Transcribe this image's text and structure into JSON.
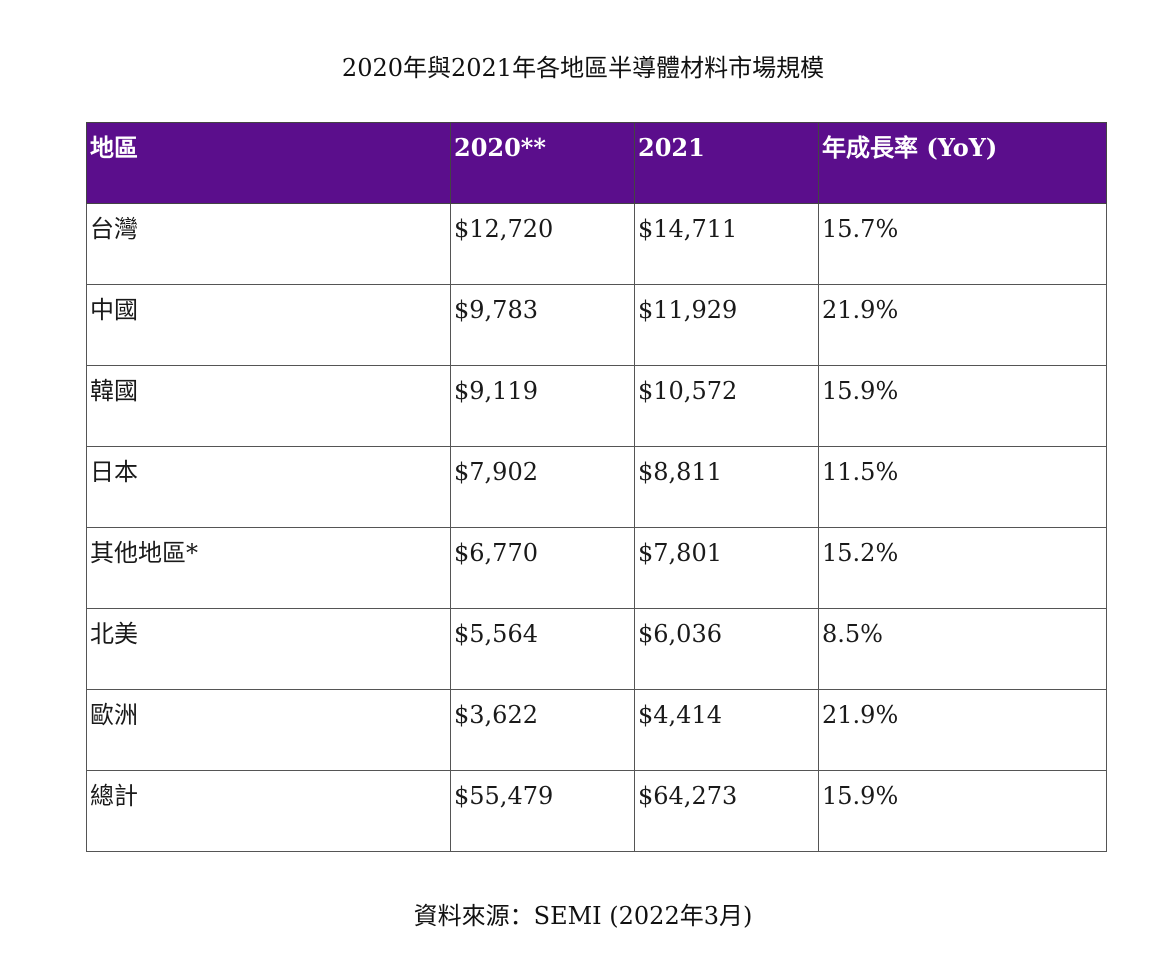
{
  "title": "2020年與2021年各地區半導體材料市場規模",
  "table": {
    "headers": [
      "地區",
      "2020**",
      "2021",
      "年成長率 (YoY)"
    ],
    "rows": [
      [
        "台灣",
        "$12,720",
        "$14,711",
        "15.7%"
      ],
      [
        "中國",
        "$9,783",
        "$11,929",
        "21.9%"
      ],
      [
        "韓國",
        "$9,119",
        "$10,572",
        "15.9%"
      ],
      [
        "日本",
        "$7,902",
        "$8,811",
        "11.5%"
      ],
      [
        "其他地區*",
        "$6,770",
        "$7,801",
        "15.2%"
      ],
      [
        "北美",
        "$5,564",
        "$6,036",
        "8.5%"
      ],
      [
        "歐洲",
        "$3,622",
        "$4,414",
        "21.9%"
      ],
      [
        "總計",
        "$55,479",
        "$64,273",
        "15.9%"
      ]
    ]
  },
  "source": "資料來源：SEMI (2022年3月)",
  "colors": {
    "header_background": "#5b0e8c",
    "header_text": "#ffffff",
    "border": "#555555"
  }
}
